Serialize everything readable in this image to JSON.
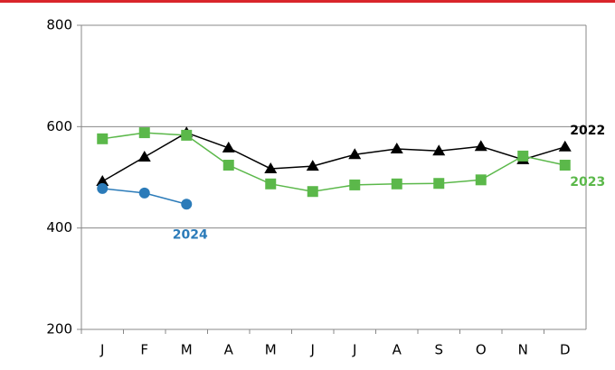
{
  "chart_data": {
    "type": "line",
    "categories": [
      "J",
      "F",
      "M",
      "A",
      "M",
      "J",
      "J",
      "A",
      "S",
      "O",
      "N",
      "D"
    ],
    "series": [
      {
        "name": "2022",
        "color": "#000000",
        "marker": "triangle",
        "values": [
          492,
          540,
          588,
          558,
          517,
          522,
          545,
          556,
          552,
          561,
          535,
          560
        ]
      },
      {
        "name": "2023",
        "color": "#5bb84a",
        "marker": "square",
        "values": [
          576,
          588,
          583,
          524,
          487,
          472,
          485,
          487,
          488,
          495,
          542,
          524
        ]
      },
      {
        "name": "2024",
        "color": "#2b7bb9",
        "marker": "circle",
        "values": [
          478,
          469,
          447,
          null,
          null,
          null,
          null,
          null,
          null,
          null,
          null,
          null
        ]
      }
    ],
    "ylim": [
      200,
      800
    ],
    "yticks": [
      200,
      400,
      600,
      800
    ],
    "grid": true
  }
}
